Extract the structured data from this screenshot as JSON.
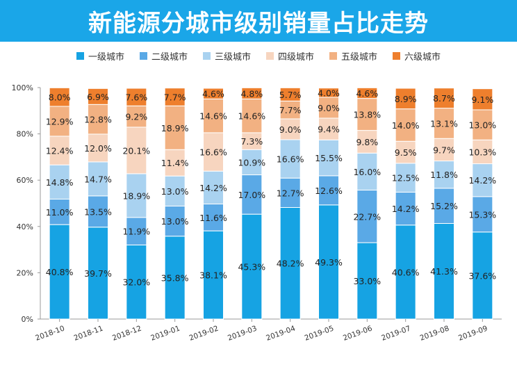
{
  "title": "新能源分城市级别销量占比走势",
  "chart_data": {
    "type": "bar",
    "stacked": true,
    "categories": [
      "2018-10",
      "2018-11",
      "2018-12",
      "2019-01",
      "2019-02",
      "2019-03",
      "2019-04",
      "2019-05",
      "2019-06",
      "2019-07",
      "2019-08",
      "2019-09"
    ],
    "ylim": [
      0,
      100
    ],
    "yticks": [
      "0%",
      "20%",
      "40%",
      "60%",
      "80%",
      "100%"
    ],
    "ytick_values": [
      0,
      20,
      40,
      60,
      80,
      100
    ],
    "legend_position": "top",
    "series": [
      {
        "name": "一级城市",
        "color": "#16a3e3",
        "values": [
          40.8,
          39.7,
          32.0,
          35.8,
          38.1,
          45.3,
          48.2,
          49.3,
          33.0,
          40.6,
          41.3,
          37.6
        ],
        "labels": [
          "40.8%",
          "39.7%",
          "32.0%",
          "35.8%",
          "38.1%",
          "45.3%",
          "48.2%",
          "49.3%",
          "33.0%",
          "40.6%",
          "41.3%",
          "37.6%"
        ]
      },
      {
        "name": "二级城市",
        "color": "#5aa9e6",
        "values": [
          11.0,
          13.5,
          11.9,
          13.0,
          11.6,
          17.0,
          12.7,
          12.6,
          22.7,
          14.2,
          15.2,
          15.3
        ],
        "labels": [
          "11.0%",
          "13.5%",
          "11.9%",
          "13.0%",
          "11.6%",
          "17.0%",
          "12.7%",
          "12.6%",
          "22.7%",
          "14.2%",
          "15.2%",
          "15.3%"
        ]
      },
      {
        "name": "三级城市",
        "color": "#a9d2f0",
        "values": [
          14.8,
          14.7,
          18.9,
          13.0,
          14.2,
          10.9,
          16.6,
          15.5,
          16.0,
          12.5,
          11.8,
          14.2
        ],
        "labels": [
          "14.8%",
          "14.7%",
          "18.9%",
          "13.0%",
          "14.2%",
          "10.9%",
          "16.6%",
          "15.5%",
          "16.0%",
          "12.5%",
          "11.8%",
          "14.2%"
        ]
      },
      {
        "name": "四级城市",
        "color": "#f7d5bf",
        "values": [
          12.4,
          12.0,
          20.1,
          11.4,
          16.6,
          7.3,
          9.0,
          9.4,
          9.8,
          9.5,
          9.7,
          10.3
        ],
        "labels": [
          "12.4%",
          "12.0%",
          "20.1%",
          "11.4%",
          "16.6%",
          "7.3%",
          "9.0%",
          "9.4%",
          "9.8%",
          "9.5%",
          "9.7%",
          "10.3%"
        ]
      },
      {
        "name": "五级城市",
        "color": "#f2b182",
        "values": [
          12.9,
          12.8,
          9.2,
          18.9,
          14.6,
          14.6,
          7.7,
          9.0,
          13.8,
          14.0,
          13.1,
          13.0
        ],
        "labels": [
          "12.9%",
          "12.8%",
          "9.2%",
          "18.9%",
          "14.6%",
          "14.6%",
          "7.7%",
          "9.0%",
          "13.8%",
          "14.0%",
          "13.1%",
          "13.0%"
        ]
      },
      {
        "name": "六级城市",
        "color": "#ee7f2d",
        "values": [
          8.0,
          6.9,
          7.6,
          7.7,
          4.6,
          4.8,
          5.7,
          4.0,
          4.6,
          8.9,
          8.7,
          9.1
        ],
        "labels": [
          "8.0%",
          "6.9%",
          "7.6%",
          "7.7%",
          "4.6%",
          "4.8%",
          "5.7%",
          "4.0%",
          "4.6%",
          "8.9%",
          "8.7%",
          "9.1%"
        ]
      }
    ]
  }
}
